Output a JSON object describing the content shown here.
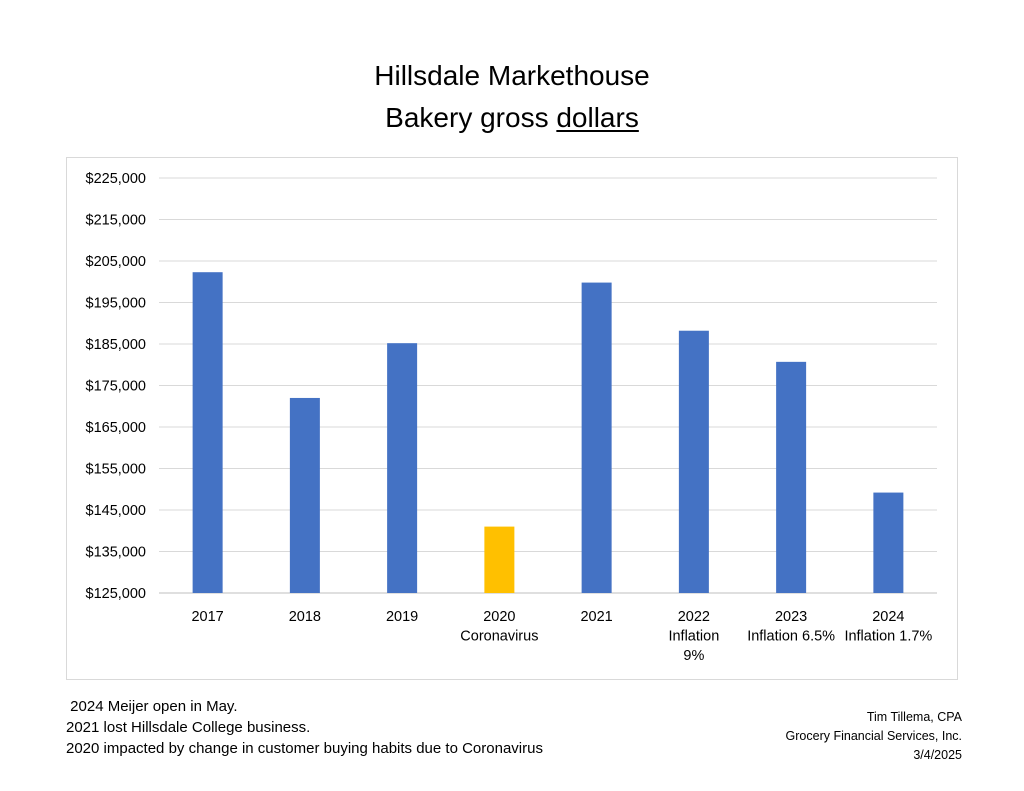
{
  "title_line1": "Hillsdale Markethouse",
  "title_line2_prefix": "Bakery gross ",
  "title_line2_underlined": "dollars",
  "chart_data": {
    "type": "bar",
    "title": "Hillsdale Markethouse Bakery gross dollars",
    "xlabel": "",
    "ylabel": "",
    "ylim": [
      125000,
      225000
    ],
    "yticks": [
      125000,
      135000,
      145000,
      155000,
      165000,
      175000,
      185000,
      195000,
      205000,
      215000,
      225000
    ],
    "ytick_labels": [
      "$125,000",
      "$135,000",
      "$145,000",
      "$155,000",
      "$165,000",
      "$175,000",
      "$185,000",
      "$195,000",
      "$205,000",
      "$215,000",
      "$225,000"
    ],
    "grid": true,
    "categories": [
      [
        "2017"
      ],
      [
        "2018"
      ],
      [
        "2019"
      ],
      [
        "2020",
        "Coronavirus"
      ],
      [
        "2021"
      ],
      [
        "2022",
        "Inflation",
        "9%"
      ],
      [
        "2023",
        "Inflation 6.5%"
      ],
      [
        "2024",
        "Inflation 1.7%"
      ]
    ],
    "values": [
      202300,
      172000,
      185200,
      141000,
      199800,
      188200,
      180700,
      149200
    ],
    "colors": [
      "#4472c4",
      "#4472c4",
      "#4472c4",
      "#ffc000",
      "#4472c4",
      "#4472c4",
      "#4472c4",
      "#4472c4"
    ],
    "gridline_color": "#d9d9d9",
    "axis_color": "#bfbfbf"
  },
  "notes": [
    " 2024 Meijer open in May.",
    "2021 lost Hillsdale College business.",
    "2020 impacted by change in customer buying habits due to Coronavirus"
  ],
  "credit": [
    "Tim Tillema, CPA",
    "Grocery Financial Services, Inc.",
    "3/4/2025"
  ]
}
